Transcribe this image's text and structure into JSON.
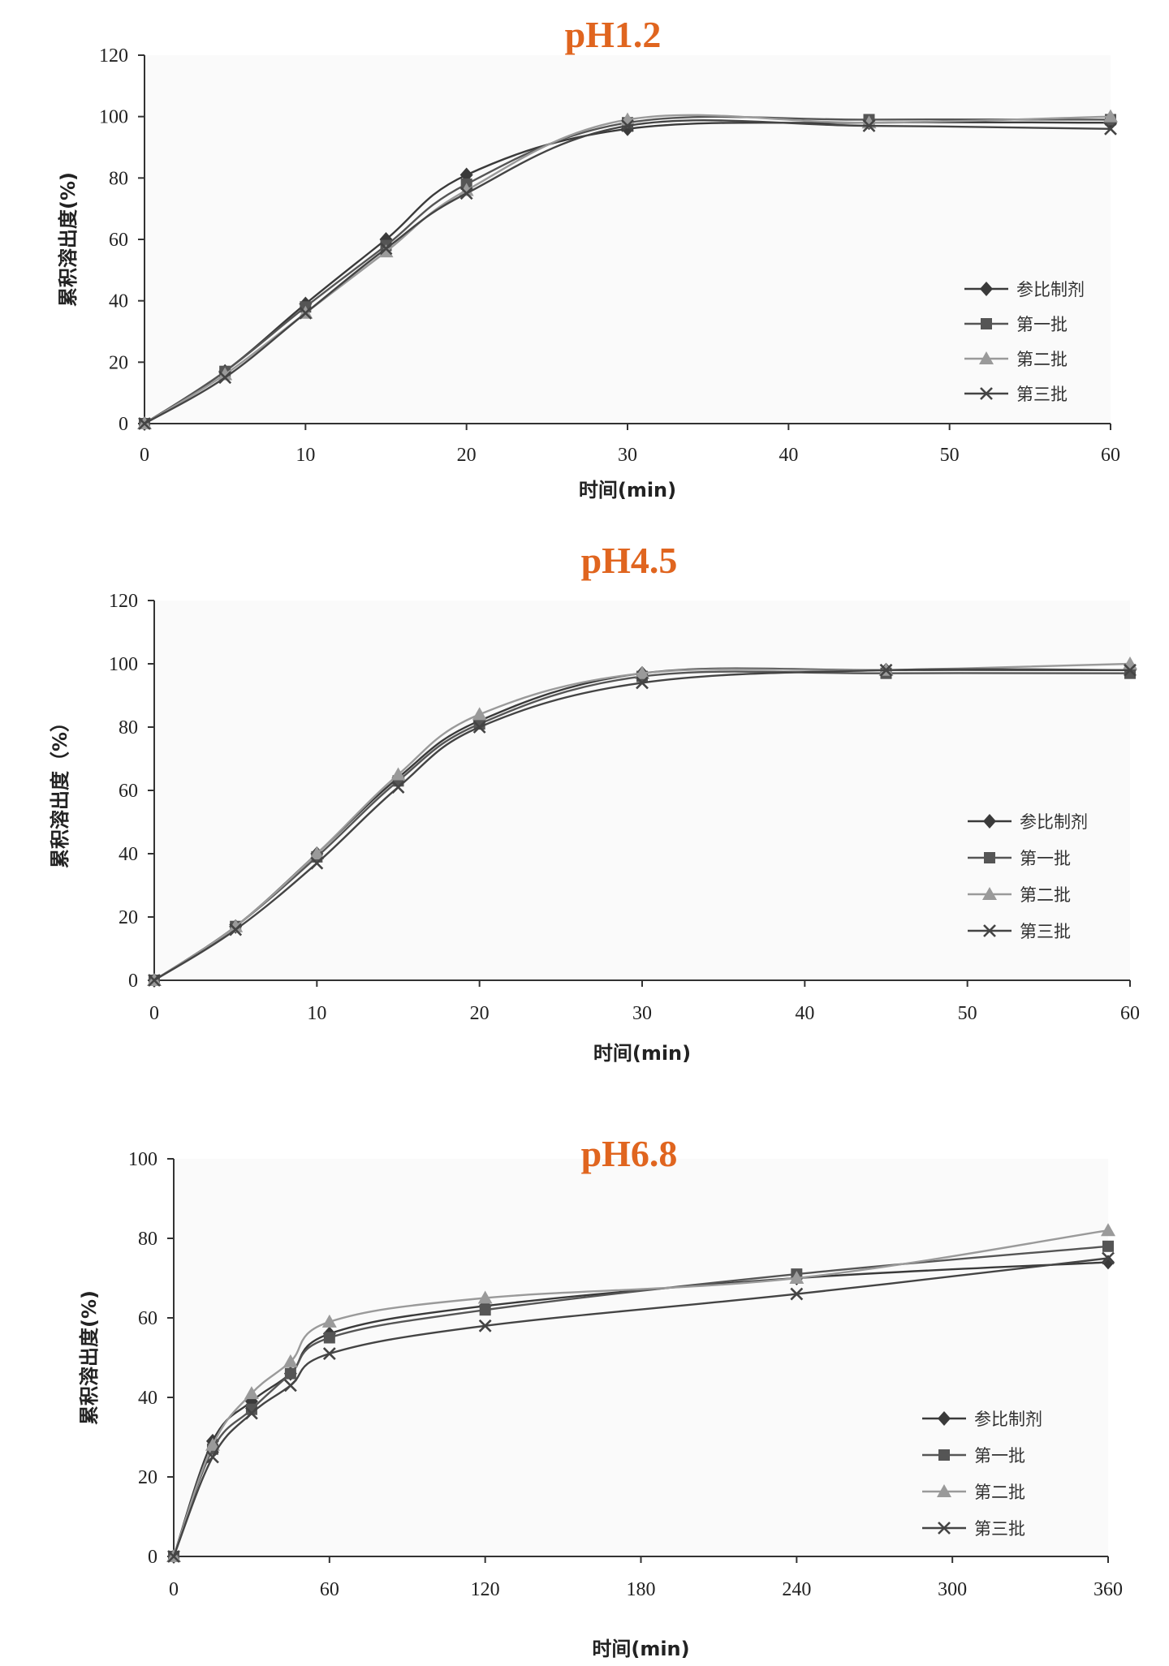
{
  "series_styles": [
    {
      "name": "参比制剂",
      "marker": "diamond",
      "color": "#3a3a3a"
    },
    {
      "name": "第一批",
      "marker": "square",
      "color": "#555555"
    },
    {
      "name": "第二批",
      "marker": "triangle",
      "color": "#9a9a9a"
    },
    {
      "name": "第三批",
      "marker": "x",
      "color": "#444444"
    }
  ],
  "chart_data": [
    {
      "type": "line",
      "title": "pH1.2",
      "xlabel": "时间(min)",
      "ylabel": "累积溶出度(%)",
      "x": [
        0,
        5,
        10,
        15,
        20,
        30,
        45,
        60
      ],
      "xlim": [
        0,
        60
      ],
      "ylim": [
        0,
        120
      ],
      "xticks": [
        0,
        10,
        20,
        30,
        40,
        50,
        60
      ],
      "yticks": [
        0,
        20,
        40,
        60,
        80,
        100,
        120
      ],
      "legend": "middle-right",
      "series": [
        {
          "name": "参比制剂",
          "values": [
            0,
            17,
            39,
            60,
            81,
            96,
            98,
            98
          ]
        },
        {
          "name": "第一批",
          "values": [
            0,
            17,
            38,
            58,
            78,
            98,
            99,
            99
          ]
        },
        {
          "name": "第二批",
          "values": [
            0,
            16,
            36,
            56,
            76,
            99,
            98,
            100
          ]
        },
        {
          "name": "第三批",
          "values": [
            0,
            15,
            36,
            57,
            75,
            97,
            97,
            96
          ]
        }
      ]
    },
    {
      "type": "line",
      "title": "pH4.5",
      "xlabel": "时间(min)",
      "ylabel": "累积溶出度（%）",
      "x": [
        0,
        5,
        10,
        15,
        20,
        30,
        45,
        60
      ],
      "xlim": [
        0,
        60
      ],
      "ylim": [
        0,
        120
      ],
      "xticks": [
        0,
        10,
        20,
        30,
        40,
        50,
        60
      ],
      "yticks": [
        0,
        20,
        40,
        60,
        80,
        100,
        120
      ],
      "legend": "middle-right",
      "series": [
        {
          "name": "参比制剂",
          "values": [
            0,
            17,
            40,
            64,
            82,
            97,
            98,
            98
          ]
        },
        {
          "name": "第一批",
          "values": [
            0,
            17,
            39,
            63,
            81,
            96,
            97,
            97
          ]
        },
        {
          "name": "第二批",
          "values": [
            0,
            17,
            40,
            65,
            84,
            97,
            98,
            100
          ]
        },
        {
          "name": "第三批",
          "values": [
            0,
            16,
            37,
            61,
            80,
            94,
            98,
            98
          ]
        }
      ]
    },
    {
      "type": "line",
      "title": "pH6.8",
      "xlabel": "时间(min)",
      "ylabel": "累积溶出度(%)",
      "x": [
        0,
        15,
        30,
        45,
        60,
        120,
        240,
        360
      ],
      "xlim": [
        0,
        360
      ],
      "ylim": [
        0,
        100
      ],
      "xticks": [
        0,
        60,
        120,
        180,
        240,
        300,
        360
      ],
      "yticks": [
        0,
        20,
        40,
        60,
        80,
        100
      ],
      "legend": "bottom-right",
      "series": [
        {
          "name": "参比制剂",
          "values": [
            0,
            29,
            39,
            46,
            56,
            63,
            70,
            74
          ]
        },
        {
          "name": "第一批",
          "values": [
            0,
            27,
            37,
            46,
            55,
            62,
            71,
            78
          ]
        },
        {
          "name": "第二批",
          "values": [
            0,
            28,
            41,
            49,
            59,
            65,
            70,
            82
          ]
        },
        {
          "name": "第三批",
          "values": [
            0,
            25,
            36,
            43,
            51,
            58,
            66,
            75
          ]
        }
      ]
    }
  ]
}
